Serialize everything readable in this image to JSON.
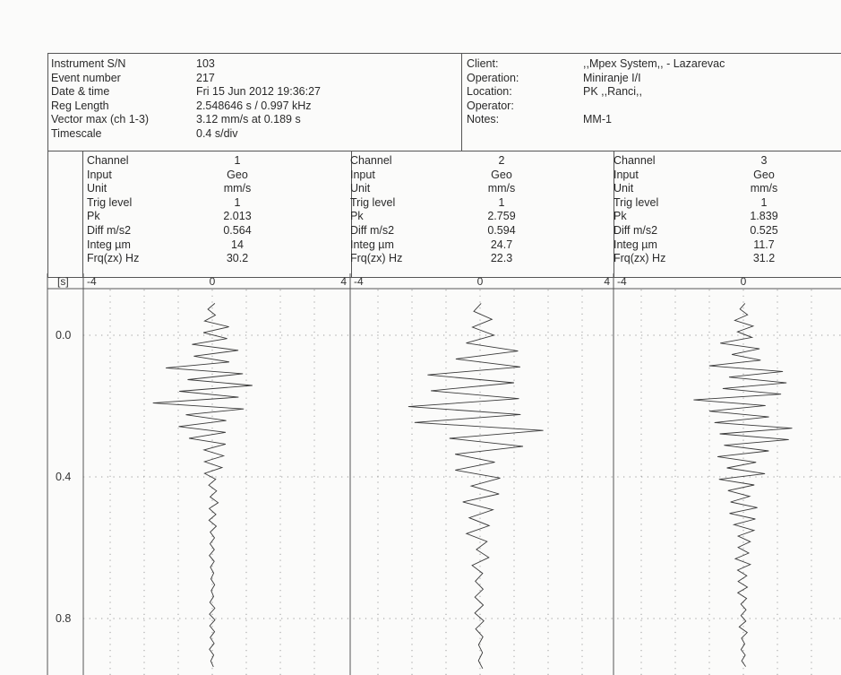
{
  "header_left": {
    "labels": [
      "Instrument S/N",
      "Event number",
      "Date & time",
      "Reg Length",
      "Vector max (ch 1-3)",
      "Timescale"
    ],
    "values": [
      "103",
      "217",
      "Fri 15 Jun 2012 19:36:27",
      "2.548646 s / 0.997 kHz",
      "3.12 mm/s at 0.189 s",
      "0.4 s/div"
    ]
  },
  "header_right": {
    "labels": [
      "Client:",
      "Operation:",
      "Location:",
      "Operator:",
      "Notes:"
    ],
    "values": [
      ",,Mpex System,, - Lazarevac",
      "Miniranje I/I",
      "PK ,,Ranci,,",
      "",
      "MM-1"
    ]
  },
  "channel_fields": [
    "Channel",
    "Input",
    "Unit",
    "Trig level",
    "Pk",
    "Diff m/s2",
    "Integ µm",
    "Frq(zx) Hz"
  ],
  "channels": [
    {
      "values": [
        "1",
        "Geo",
        "mm/s",
        "1",
        "2.013",
        "0.564",
        "14",
        "30.2"
      ]
    },
    {
      "values": [
        "2",
        "Geo",
        "mm/s",
        "1",
        "2.759",
        "0.594",
        "24.7",
        "22.3"
      ]
    },
    {
      "values": [
        "3",
        "Geo",
        "mm/s",
        "1",
        "1.839",
        "0.525",
        "11.7",
        "31.2"
      ]
    }
  ],
  "plot": {
    "time_unit": "[s]",
    "x_ticks": [
      "-4",
      "0",
      "4"
    ],
    "y_ticks": [
      "0.0",
      "0.4",
      "0.8"
    ]
  },
  "chart_data": {
    "type": "line",
    "title": "",
    "xlabel": "",
    "ylabel": "[s]",
    "xlim": [
      -4,
      4
    ],
    "ylim": [
      -0.09,
      0.95
    ],
    "y_ticks": [
      0.0,
      0.4,
      0.8
    ],
    "series": [
      {
        "channel": "1",
        "pk": 2.013,
        "t_peak": 0.19,
        "t_active": [
          -0.08,
          0.5
        ],
        "freq_hz": 30.2
      },
      {
        "channel": "2",
        "pk": 2.759,
        "t_peak": 0.21,
        "t_active": [
          -0.08,
          0.9
        ],
        "freq_hz": 22.3
      },
      {
        "channel": "3",
        "pk": 1.839,
        "t_peak": 0.24,
        "t_active": [
          -0.08,
          0.9
        ],
        "freq_hz": 31.2
      }
    ]
  }
}
